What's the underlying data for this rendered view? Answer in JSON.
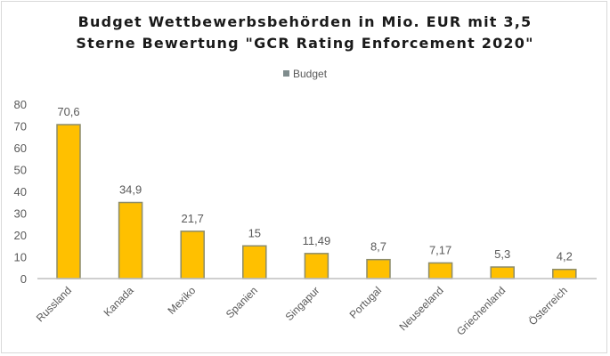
{
  "chart_data": {
    "type": "bar",
    "title": [
      "Budget Wettbewerbsbehörden in Mio. EUR mit 3,5",
      "Sterne Bewertung \"GCR Rating Enforcement 2020\""
    ],
    "legend": {
      "label": "Budget",
      "position": "top"
    },
    "categories": [
      "Russland",
      "Kanada",
      "Mexiko",
      "Spanien",
      "Singapur",
      "Portugal",
      "Neuseeland",
      "Griechenland",
      "Österreich"
    ],
    "values": [
      70.6,
      34.9,
      21.7,
      15,
      11.49,
      8.7,
      7.17,
      5.3,
      4.2
    ],
    "data_labels": [
      "70,6",
      "34,9",
      "21,7",
      "15",
      "11,49",
      "8,7",
      "7,17",
      "5,3",
      "4,2"
    ],
    "ylim": [
      0,
      80
    ],
    "yticks": [
      0,
      10,
      20,
      30,
      40,
      50,
      60,
      70,
      80
    ],
    "grid": false,
    "xlabel": "",
    "ylabel": "",
    "colors": {
      "bar": "#FFC000",
      "bar_edge": "#8c8c6a",
      "legend_swatch": "#7f8c8d"
    }
  }
}
